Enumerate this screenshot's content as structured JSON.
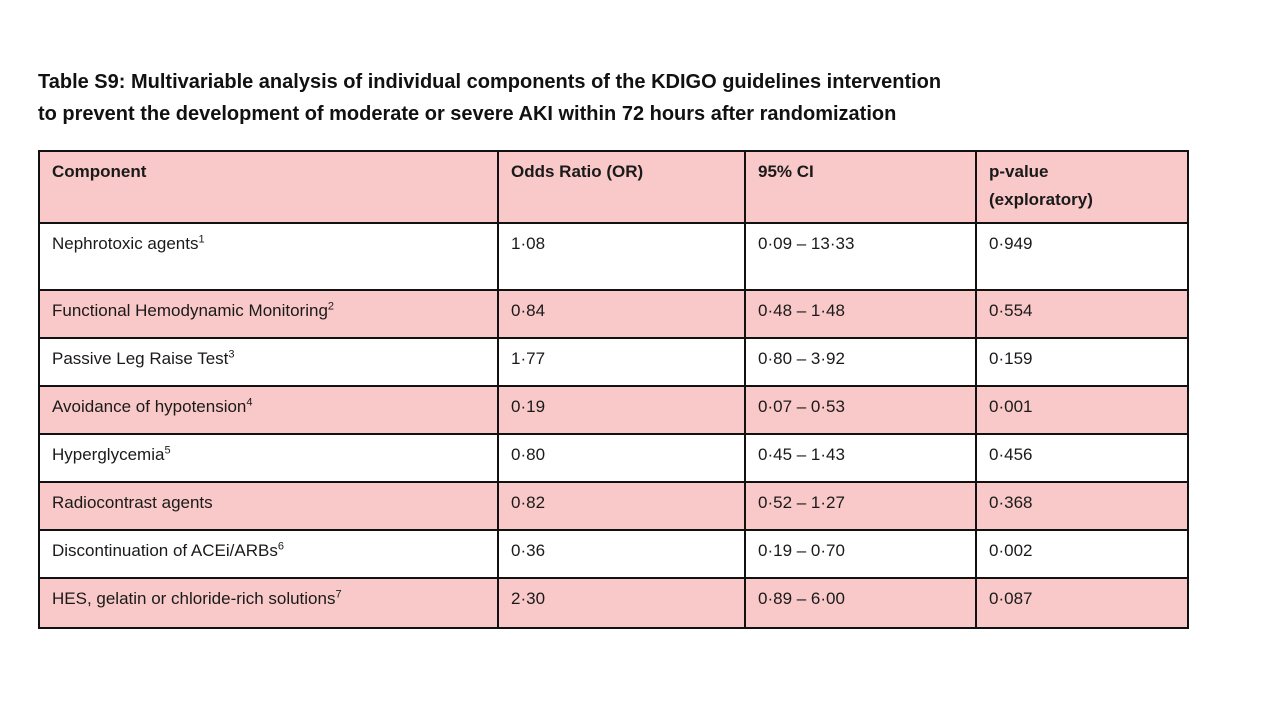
{
  "title": {
    "line1": "Table S9: Multivariable analysis of individual components of the KDIGO guidelines intervention",
    "line2": "to prevent the development of moderate or severe AKI within 72 hours after randomization"
  },
  "colors": {
    "row_shade_pink": "#f9c8c8",
    "border_black": "#111111",
    "page_background": "#ffffff"
  },
  "table": {
    "headers": {
      "component": "Component",
      "odds_ratio": "Odds Ratio (OR)",
      "ci": "95% CI",
      "p_line1": "p-value",
      "p_line2": "(exploratory)"
    },
    "rows": [
      {
        "component": "Nephrotoxic agents",
        "sup": "1",
        "or": "1·08",
        "ci": "0·09 – 13·33",
        "p": "0·949"
      },
      {
        "component": "Functional Hemodynamic Monitoring",
        "sup": "2",
        "or": "0·84",
        "ci": "0·48 – 1·48",
        "p": "0·554"
      },
      {
        "component": "Passive Leg Raise Test",
        "sup": "3",
        "or": "1·77",
        "ci": "0·80 – 3·92",
        "p": "0·159"
      },
      {
        "component": "Avoidance of hypotension",
        "sup": "4",
        "or": "0·19",
        "ci": "0·07 – 0·53",
        "p": "0·001"
      },
      {
        "component": "Hyperglycemia",
        "sup": "5",
        "or": "0·80",
        "ci": "0·45 – 1·43",
        "p": "0·456"
      },
      {
        "component": "Radiocontrast agents",
        "sup": "",
        "or": "0·82",
        "ci": "0·52 – 1·27",
        "p": "0·368"
      },
      {
        "component": "Discontinuation of ACEi/ARBs",
        "sup": "6",
        "or": "0·36",
        "ci": "0·19 – 0·70",
        "p": "0·002"
      },
      {
        "component": "HES, gelatin or chloride-rich solutions",
        "sup": "7",
        "or": "2·30",
        "ci": "0·89 – 6·00",
        "p": "0·087"
      }
    ]
  }
}
